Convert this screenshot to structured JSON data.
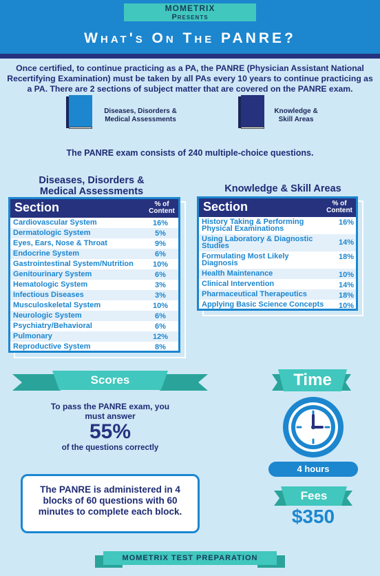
{
  "brand": {
    "line1": "Mometrix",
    "line2": "Presents"
  },
  "title": "What's On The PANRE?",
  "intro": "Once certified, to continue practicing as a PA, the PANRE (Physician Assistant National Recertifying Examination) must be taken by all PAs every 10 years to continue practicing as a PA. There are 2 sections of subject matter that are covered on the PANRE exam.",
  "books": [
    {
      "label": "Diseases, Disorders & Medical Assessments",
      "color": "#1c86cf",
      "icon": "book-icon"
    },
    {
      "label": "Knowledge & Skill Areas",
      "color": "#26327e",
      "icon": "book-icon"
    }
  ],
  "exam_count": "The PANRE exam consists of 240 multiple-choice questions.",
  "table1": {
    "title": "Diseases, Disorders & Medical Assessments",
    "col_section": "Section",
    "col_pct": "% of Content",
    "rows": [
      {
        "name": "Cardiovascular System",
        "pct": "16%"
      },
      {
        "name": "Dermatologic System",
        "pct": "5%"
      },
      {
        "name": "Eyes, Ears, Nose & Throat",
        "pct": "9%"
      },
      {
        "name": "Endocrine System",
        "pct": "6%"
      },
      {
        "name": "Gastrointestinal System/Nutrition",
        "pct": "10%"
      },
      {
        "name": "Genitourinary System",
        "pct": "6%"
      },
      {
        "name": "Hematologic System",
        "pct": "3%"
      },
      {
        "name": "Infectious Diseases",
        "pct": "3%"
      },
      {
        "name": "Musculoskeletal System",
        "pct": "10%"
      },
      {
        "name": "Neurologic System",
        "pct": "6%"
      },
      {
        "name": "Psychiatry/Behavioral",
        "pct": "6%"
      },
      {
        "name": "Pulmonary",
        "pct": "12%"
      },
      {
        "name": "Reproductive System",
        "pct": "8%"
      }
    ]
  },
  "table2": {
    "title": "Knowledge & Skill Areas",
    "col_section": "Section",
    "col_pct": "% of Content",
    "rows": [
      {
        "name": "History Taking & Performing Physical Examinations",
        "pct": "16%"
      },
      {
        "name": "Using Laboratory & Diagnostic Studies",
        "pct": "14%"
      },
      {
        "name": "Formulating Most Likely Diagnosis",
        "pct": "18%"
      },
      {
        "name": "Health Maintenance",
        "pct": "10%"
      },
      {
        "name": "Clinical Intervention",
        "pct": "14%"
      },
      {
        "name": "Pharmaceutical Therapeutics",
        "pct": "18%"
      },
      {
        "name": "Applying Basic Science Concepts",
        "pct": "10%"
      }
    ]
  },
  "scores": {
    "label": "Scores",
    "pre": "To pass the PANRE exam, you must answer",
    "value": "55%",
    "post": "of the questions correctly"
  },
  "blocks_text": "The PANRE is administered in 4 blocks of 60 questions with 60 minutes to complete each block.",
  "time": {
    "label": "Time",
    "value": "4 hours",
    "icon": "clock-icon"
  },
  "fees": {
    "label": "Fees",
    "value": "$350"
  },
  "footer": "Mometrix Test Preparation",
  "colors": {
    "light_blue": "#1c86cf",
    "navy": "#26327e",
    "teal": "#41c7bd",
    "background": "#cfe8f6"
  }
}
